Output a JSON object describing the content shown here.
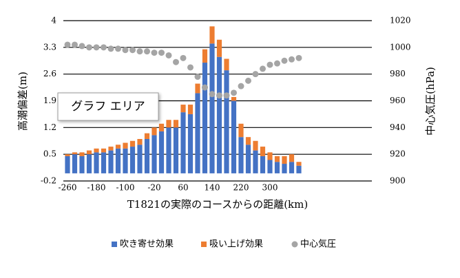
{
  "chart_data": {
    "type": "bar",
    "xlabel": "T1821の実際のコースからの距離(km)",
    "ylabel": "高潮偏差(m)",
    "y2label": "中心気圧(hPa)",
    "annotation": "グラフ エリア",
    "categories": [
      "-260",
      null,
      null,
      null,
      "-180",
      null,
      null,
      null,
      "-100",
      null,
      null,
      null,
      "-20",
      null,
      null,
      null,
      "60",
      null,
      null,
      null,
      "140",
      null,
      null,
      null,
      "220",
      null,
      null,
      null,
      "300",
      null,
      null,
      null,
      null
    ],
    "series": [
      {
        "name": "吹き寄せ効果",
        "color": "#4472c4",
        "stack": true,
        "values": [
          0.45,
          0.5,
          0.45,
          0.5,
          0.55,
          0.55,
          0.6,
          0.65,
          0.65,
          0.7,
          0.75,
          0.9,
          1.0,
          1.1,
          1.2,
          1.2,
          1.6,
          1.55,
          2.1,
          2.9,
          3.4,
          3.05,
          2.7,
          1.9,
          0.95,
          0.75,
          0.6,
          0.45,
          0.35,
          0.3,
          0.25,
          0.3,
          0.2
        ]
      },
      {
        "name": "吸い上げ効果",
        "color": "#ed7d31",
        "stack": true,
        "values": [
          0.05,
          0.05,
          0.1,
          0.1,
          0.1,
          0.1,
          0.1,
          0.1,
          0.15,
          0.15,
          0.15,
          0.15,
          0.2,
          0.2,
          0.2,
          0.2,
          0.2,
          0.25,
          0.25,
          0.35,
          0.45,
          0.45,
          0.3,
          0.1,
          0.35,
          0.2,
          0.25,
          0.25,
          0.2,
          0.15,
          0.2,
          0.2,
          0.1
        ]
      },
      {
        "name": "中心気圧",
        "color": "#a5a5a5",
        "type": "scatter",
        "axis": "y2",
        "values": [
          1002,
          1002,
          1001,
          1000,
          1000,
          1000,
          999,
          999,
          998,
          998,
          997,
          997,
          996,
          996,
          994,
          989,
          992,
          985,
          978,
          970,
          965,
          964,
          964,
          966,
          971,
          975,
          980,
          984,
          987,
          988,
          990,
          991,
          992
        ]
      }
    ],
    "ylim": [
      -0.2,
      4
    ],
    "yticks": [
      -0.2,
      0.5,
      1.2,
      1.9,
      2.6,
      3.3,
      4
    ],
    "y2lim": [
      900,
      1020
    ],
    "y2ticks": [
      900,
      920,
      940,
      960,
      980,
      1000,
      1020
    ],
    "grid": true
  }
}
